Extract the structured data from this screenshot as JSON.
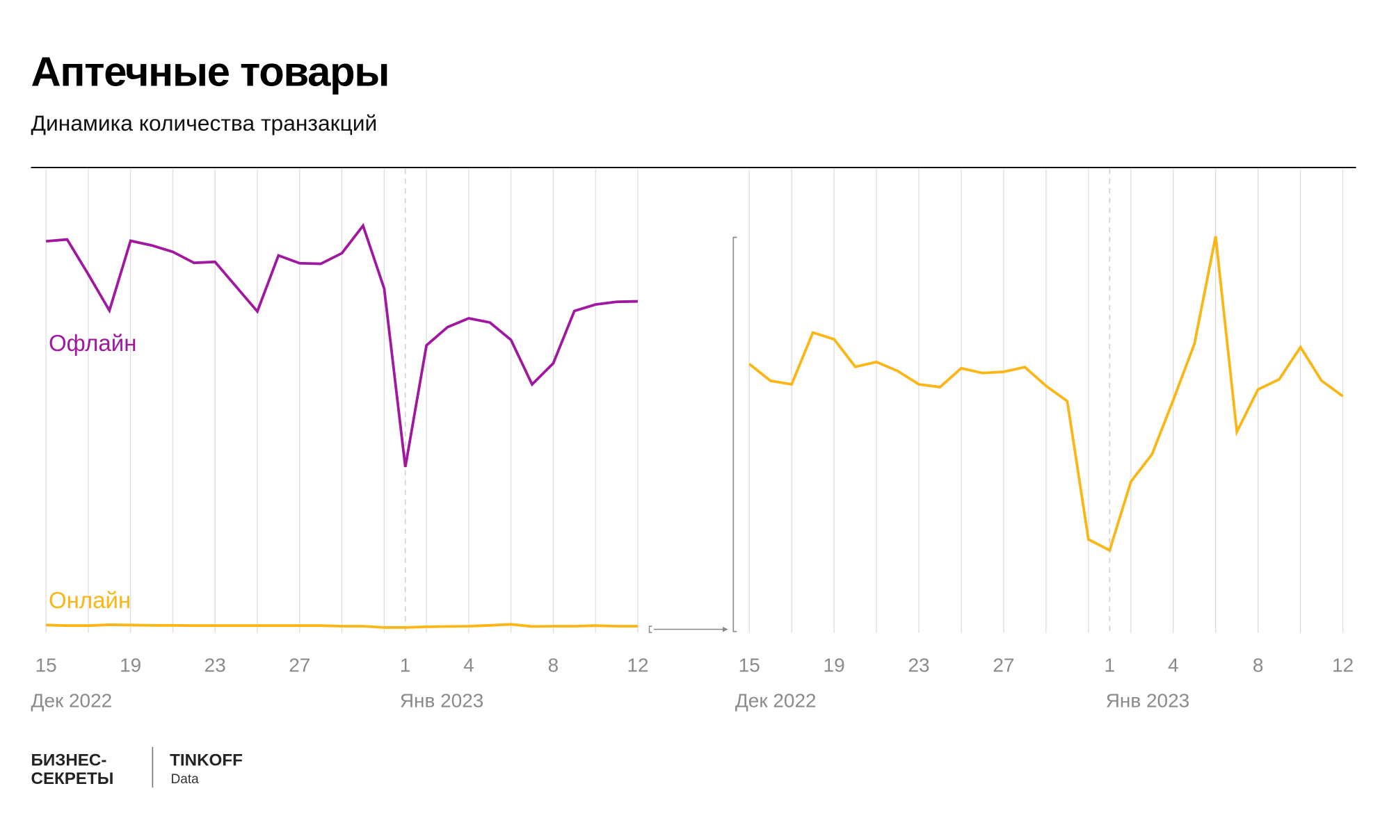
{
  "header": {
    "title": "Аптечные товары",
    "subtitle": "Динамика количества транзакций"
  },
  "colors": {
    "offline": "#a0189f",
    "online": "#fbb615",
    "grid": "#dcdcdc",
    "axis_text": "#8a8a8a"
  },
  "chart_data": [
    {
      "type": "line",
      "x": [
        15,
        16,
        17,
        18,
        19,
        20,
        21,
        22,
        23,
        24,
        25,
        26,
        27,
        28,
        29,
        30,
        31,
        1,
        2,
        3,
        4,
        5,
        6,
        7,
        8,
        9,
        10,
        11,
        12
      ],
      "tick_labels": [
        "15",
        "19",
        "23",
        "27",
        "1",
        "4",
        "8",
        "12"
      ],
      "month_labels": [
        "Дек 2022",
        "Янв 2023"
      ],
      "grid": true,
      "dashed_marker": "1",
      "series": [
        {
          "name": "Офлайн",
          "color": "#a0189f",
          "values": [
            84.6,
            85.0,
            77.4,
            69.5,
            84.7,
            83.7,
            82.3,
            79.9,
            80.1,
            74.7,
            69.3,
            81.5,
            79.8,
            79.7,
            82.0,
            88.0,
            74.3,
            35.4,
            61.9,
            65.9,
            67.8,
            66.9,
            63.1,
            53.4,
            58.0,
            69.4,
            70.8,
            71.4,
            71.5
          ]
        },
        {
          "name": "Онлайн",
          "color": "#fbb615",
          "values": [
            0.95,
            0.8,
            0.8,
            1.0,
            0.95,
            0.87,
            0.87,
            0.8,
            0.8,
            0.8,
            0.8,
            0.8,
            0.8,
            0.8,
            0.7,
            0.7,
            0.4,
            0.4,
            0.55,
            0.63,
            0.7,
            0.87,
            1.1,
            0.63,
            0.7,
            0.7,
            0.8,
            0.7,
            0.7
          ]
        }
      ],
      "ylim": [
        0,
        100
      ]
    },
    {
      "type": "line",
      "x": [
        15,
        16,
        17,
        18,
        19,
        20,
        21,
        22,
        23,
        24,
        25,
        26,
        27,
        28,
        29,
        30,
        31,
        1,
        2,
        3,
        4,
        5,
        6,
        7,
        8,
        9,
        10,
        11,
        12
      ],
      "tick_labels": [
        "15",
        "19",
        "23",
        "27",
        "1",
        "4",
        "8",
        "12"
      ],
      "month_labels": [
        "Дек 2022",
        "Янв 2023"
      ],
      "grid": true,
      "dashed_marker": "1",
      "series": [
        {
          "color": "#fbb615",
          "values": [
            67.4,
            63.1,
            62.2,
            75.4,
            73.7,
            66.7,
            67.9,
            65.6,
            62.2,
            61.5,
            66.3,
            65.1,
            65.4,
            66.6,
            61.8,
            57.9,
            22.7,
            19.9,
            37.4,
            44.4,
            58.2,
            72.6,
            99.9,
            50.1,
            60.9,
            63.5,
            71.7,
            63.1,
            59.2
          ]
        }
      ],
      "ylim": [
        0,
        100
      ]
    }
  ],
  "logo": {
    "brand1_line1": "БИЗНЕС-",
    "brand1_line2": "СЕКРЕТЫ",
    "brand2": "TINKOFF",
    "brand2_sub": "Data"
  }
}
